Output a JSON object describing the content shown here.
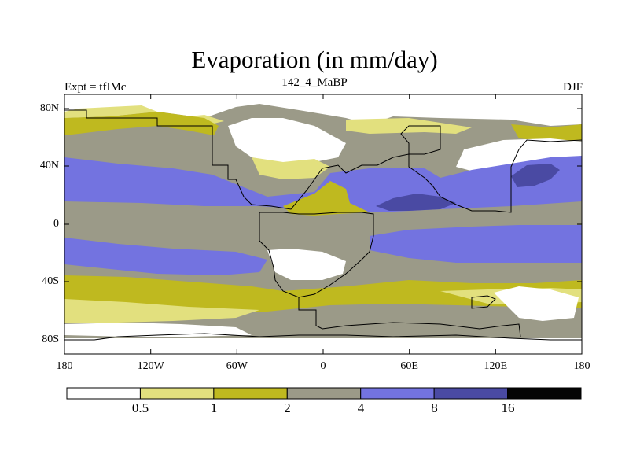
{
  "title": "Evaporation (in mm/day)",
  "subtitle": {
    "left": "Expt = tfIMc",
    "center": "142_4_MaBP",
    "right": "DJF"
  },
  "lat_ticks": [
    "80N",
    "40N",
    "0",
    "40S",
    "80S"
  ],
  "lon_ticks": [
    "180",
    "120W",
    "60W",
    "0",
    "60E",
    "120E",
    "180"
  ],
  "colorbar": {
    "labels": [
      "0.5",
      "1",
      "2",
      "4",
      "8",
      "16"
    ],
    "colors": [
      "#ffffff",
      "#e2e07e",
      "#bfb91f",
      "#9b9a88",
      "#7373e0",
      "#4a4aa3",
      "#050505"
    ]
  }
}
